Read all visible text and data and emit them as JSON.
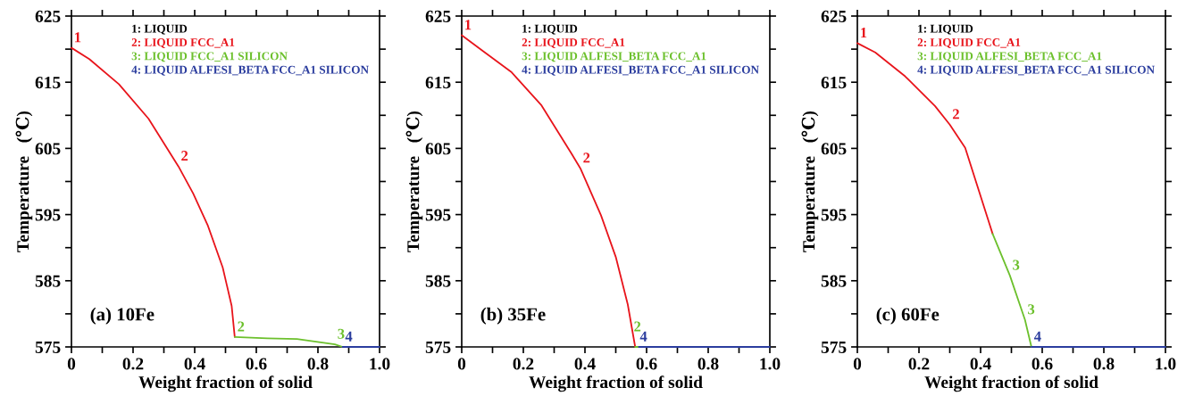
{
  "chart_data": [
    {
      "type": "line",
      "xlabel": "Weight fraction of solid",
      "ylabel": "Temperature   (℃)",
      "legend": "top",
      "xlim": [
        0,
        1.0
      ],
      "ylim": [
        575,
        625
      ],
      "annotations": [
        "(a) 10Fe",
        {
          "text": "1",
          "x": 0,
          "y": 620.2
        },
        {
          "text": "2",
          "x": 0.347,
          "y": 602.3
        },
        {
          "text": "2",
          "x": 0.53,
          "y": 576.5
        },
        {
          "text": "3",
          "x": 0.855,
          "y": 575.4
        },
        {
          "text": "4",
          "x": 0.88,
          "y": 575.0
        }
      ],
      "xticks": [
        0,
        {
          "value": 0.1,
          "label": null
        },
        0.2,
        {
          "value": 0.3,
          "label": null
        },
        0.4,
        {
          "value": 0.5,
          "label": null
        },
        0.6,
        {
          "value": 0.7,
          "label": null
        },
        0.8,
        {
          "value": 0.9,
          "label": null
        },
        {
          "value": 1,
          "label": "1.0"
        }
      ],
      "yticks": [
        575,
        {
          "value": 580,
          "label": null
        },
        585,
        {
          "value": 590,
          "label": null
        },
        595,
        {
          "value": 600,
          "label": null
        },
        605,
        {
          "value": 610,
          "label": null
        },
        615,
        {
          "value": 620,
          "label": null
        },
        625
      ],
      "series": [
        {
          "name": "1: LIQUID",
          "color": "#000000"
        },
        {
          "name": "2: LIQUID FCC_A1",
          "color": "#e8141b",
          "x": [
            0,
            0.058,
            0.154,
            0.25,
            0.347,
            0.395,
            0.443,
            0.491,
            0.52,
            0.53
          ],
          "values": [
            620.2,
            618.5,
            614.7,
            609.5,
            602.3,
            598.2,
            593.3,
            587.0,
            581.2,
            576.5
          ]
        },
        {
          "name": "3: LIQUID FCC_A1 SILICON",
          "color": "#6cc02c",
          "x": [
            0.53,
            0.636,
            0.732,
            0.809,
            0.855,
            0.88
          ],
          "values": [
            576.5,
            576.3,
            576.2,
            575.7,
            575.4,
            575.0
          ]
        },
        {
          "name": "4: LIQUID ALFESI_BETA FCC_A1 SILICON",
          "color": "#2b3d9e",
          "x": [
            0.88,
            1.0
          ],
          "values": [
            575.0,
            575.0
          ]
        }
      ]
    },
    {
      "type": "line",
      "xlabel": "Weight fraction of solid",
      "ylabel": "Temperature   (℃)",
      "legend": "top",
      "xlim": [
        0,
        1.0
      ],
      "ylim": [
        575,
        625
      ],
      "annotations": [
        "(b) 35Fe",
        {
          "text": "1",
          "x": 0,
          "y": 622.1
        },
        {
          "text": "2",
          "x": 0.385,
          "y": 602.0
        },
        {
          "text": "2",
          "x": 0.55,
          "y": 576.5
        },
        {
          "text": "4",
          "x": 0.57,
          "y": 575.0
        }
      ],
      "xticks": [
        0,
        {
          "value": 0.1,
          "label": null
        },
        0.2,
        {
          "value": 0.3,
          "label": null
        },
        0.4,
        {
          "value": 0.5,
          "label": null
        },
        0.6,
        {
          "value": 0.7,
          "label": null
        },
        0.8,
        {
          "value": 0.9,
          "label": null
        },
        {
          "value": 1,
          "label": "1.0"
        }
      ],
      "yticks": [
        575,
        {
          "value": 580,
          "label": null
        },
        585,
        {
          "value": 590,
          "label": null
        },
        595,
        {
          "value": 600,
          "label": null
        },
        605,
        {
          "value": 610,
          "label": null
        },
        615,
        {
          "value": 620,
          "label": null
        },
        625
      ],
      "series": [
        {
          "name": "1: LIQUID",
          "color": "#000000"
        },
        {
          "name": "2: LIQUID FCC_A1",
          "color": "#e8141b",
          "x": [
            0,
            0.066,
            0.162,
            0.259,
            0.355,
            0.385,
            0.452,
            0.5,
            0.539,
            0.563
          ],
          "values": [
            622.1,
            619.8,
            616.5,
            611.5,
            604.3,
            602.0,
            594.9,
            588.6,
            581.4,
            575.0
          ]
        },
        {
          "name": "3: LIQUID ALFESI_BETA FCC_A1",
          "color": "#6cc02c",
          "x": [
            0.563,
            0.575
          ],
          "values": [
            575.0,
            575.0
          ]
        },
        {
          "name": "4: LIQUID ALFESI_BETA FCC_A1 SILICON",
          "color": "#2b3d9e",
          "x": [
            0.575,
            1.0
          ],
          "values": [
            575.0,
            575.0
          ]
        }
      ]
    },
    {
      "type": "line",
      "xlabel": "Weight fraction of solid",
      "ylabel": "Temperature   (℃)",
      "legend": "top",
      "xlim": [
        0,
        1.0
      ],
      "ylim": [
        575,
        625
      ],
      "annotations": [
        "(c) 60Fe",
        {
          "text": "1",
          "x": 0,
          "y": 620.9
        },
        {
          "text": "2",
          "x": 0.3,
          "y": 608.6
        },
        {
          "text": "3",
          "x": 0.495,
          "y": 585.8
        },
        {
          "text": "3",
          "x": 0.544,
          "y": 579.1
        },
        {
          "text": "4",
          "x": 0.565,
          "y": 575.0
        }
      ],
      "xticks": [
        0,
        {
          "value": 0.1,
          "label": null
        },
        0.2,
        {
          "value": 0.3,
          "label": null
        },
        0.4,
        {
          "value": 0.5,
          "label": null
        },
        0.6,
        {
          "value": 0.7,
          "label": null
        },
        0.8,
        {
          "value": 0.9,
          "label": null
        },
        {
          "value": 1,
          "label": "1.0"
        }
      ],
      "yticks": [
        575,
        {
          "value": 580,
          "label": null
        },
        585,
        {
          "value": 590,
          "label": null
        },
        595,
        {
          "value": 600,
          "label": null
        },
        605,
        {
          "value": 610,
          "label": null
        },
        615,
        {
          "value": 620,
          "label": null
        },
        625
      ],
      "series": [
        {
          "name": "1: LIQUID",
          "color": "#000000"
        },
        {
          "name": "2: LIQUID FCC_A1",
          "color": "#e8141b",
          "x": [
            0,
            0.058,
            0.155,
            0.252,
            0.3,
            0.35,
            0.439
          ],
          "values": [
            620.9,
            619.5,
            615.9,
            611.4,
            608.6,
            605.1,
            592.1
          ]
        },
        {
          "name": "3: LIQUID ALFESI_BETA FCC_A1",
          "color": "#6cc02c",
          "x": [
            0.439,
            0.495,
            0.544,
            0.565
          ],
          "values": [
            592.1,
            585.8,
            579.1,
            575.0
          ]
        },
        {
          "name": "4: LIQUID ALFESI_BETA FCC_A1 SILICON",
          "color": "#2b3d9e",
          "x": [
            0.565,
            1.0
          ],
          "values": [
            575.0,
            575.0
          ]
        }
      ]
    }
  ]
}
